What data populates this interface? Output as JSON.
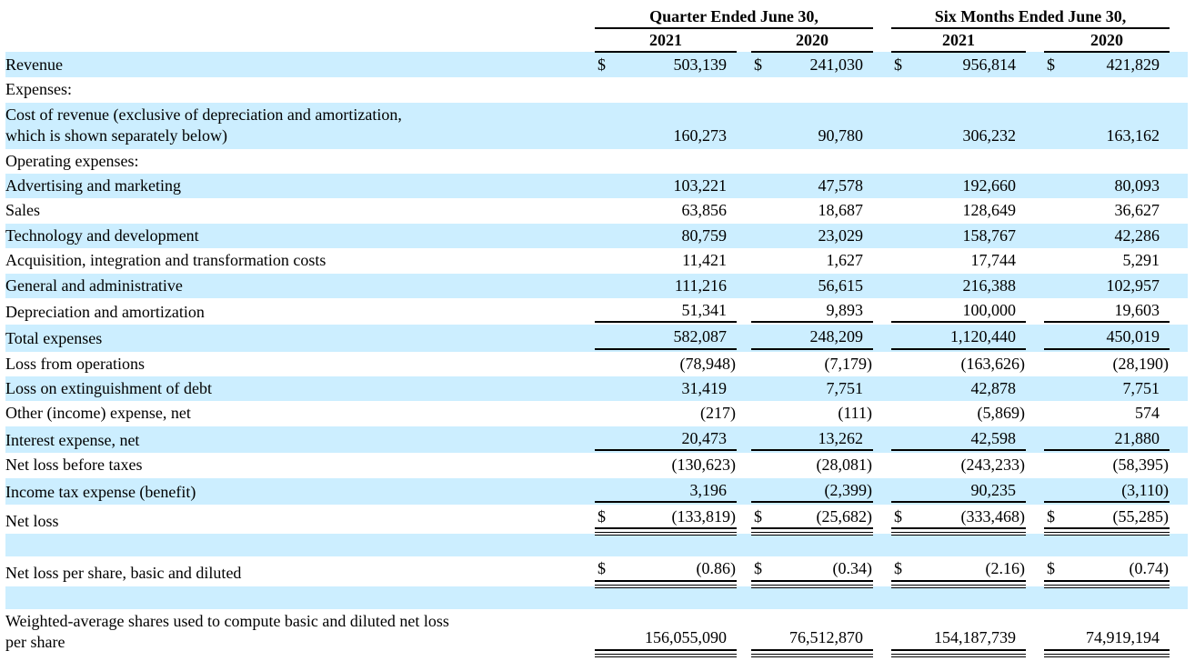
{
  "table": {
    "dollar_sign": "$",
    "shade_color": "#cceeff",
    "col_groups": [
      {
        "period": "Quarter Ended June 30,",
        "years": [
          "2021",
          "2020"
        ]
      },
      {
        "period": "Six Months Ended June 30,",
        "years": [
          "2021",
          "2020"
        ]
      }
    ],
    "rows": [
      {
        "label": "Revenue",
        "indent": 0,
        "shaded": true,
        "dollar": true,
        "rule": "none",
        "values": [
          "503,139",
          "241,030",
          "956,814",
          "421,829"
        ]
      },
      {
        "label": "Expenses:",
        "indent": 0,
        "shaded": false,
        "dollar": false,
        "rule": "none",
        "values": [
          "",
          "",
          "",
          ""
        ]
      },
      {
        "label": "Cost of revenue (exclusive of depreciation and amortization,\nwhich is shown separately below)",
        "indent": 1,
        "shaded": true,
        "dollar": false,
        "rule": "none",
        "values": [
          "160,273",
          "90,780",
          "306,232",
          "163,162"
        ]
      },
      {
        "label": "Operating expenses:",
        "indent": 1,
        "shaded": false,
        "dollar": false,
        "rule": "none",
        "values": [
          "",
          "",
          "",
          ""
        ]
      },
      {
        "label": "Advertising and marketing",
        "indent": 2,
        "shaded": true,
        "dollar": false,
        "rule": "none",
        "values": [
          "103,221",
          "47,578",
          "192,660",
          "80,093"
        ]
      },
      {
        "label": "Sales",
        "indent": 2,
        "shaded": false,
        "dollar": false,
        "rule": "none",
        "values": [
          "63,856",
          "18,687",
          "128,649",
          "36,627"
        ]
      },
      {
        "label": "Technology and development",
        "indent": 2,
        "shaded": true,
        "dollar": false,
        "rule": "none",
        "values": [
          "80,759",
          "23,029",
          "158,767",
          "42,286"
        ]
      },
      {
        "label": "Acquisition, integration and transformation costs",
        "indent": 2,
        "shaded": false,
        "dollar": false,
        "rule": "none",
        "values": [
          "11,421",
          "1,627",
          "17,744",
          "5,291"
        ]
      },
      {
        "label": "General and administrative",
        "indent": 2,
        "shaded": true,
        "dollar": false,
        "rule": "none",
        "values": [
          "111,216",
          "56,615",
          "216,388",
          "102,957"
        ]
      },
      {
        "label": "Depreciation and amortization",
        "indent": 2,
        "shaded": false,
        "dollar": false,
        "rule": "single",
        "values": [
          "51,341",
          "9,893",
          "100,000",
          "19,603"
        ]
      },
      {
        "label": "Total expenses",
        "indent": 3,
        "shaded": true,
        "dollar": false,
        "rule": "single",
        "values": [
          "582,087",
          "248,209",
          "1,120,440",
          "450,019"
        ]
      },
      {
        "label": "Loss from operations",
        "indent": 0,
        "shaded": false,
        "dollar": false,
        "rule": "none",
        "values": [
          "(78,948)",
          "(7,179)",
          "(163,626)",
          "(28,190)"
        ]
      },
      {
        "label": "Loss on extinguishment of debt",
        "indent": 0,
        "shaded": true,
        "dollar": false,
        "rule": "none",
        "values": [
          "31,419",
          "7,751",
          "42,878",
          "7,751"
        ]
      },
      {
        "label": "Other (income) expense, net",
        "indent": 0,
        "shaded": false,
        "dollar": false,
        "rule": "none",
        "values": [
          "(217)",
          "(111)",
          "(5,869)",
          "574"
        ]
      },
      {
        "label": "Interest expense, net",
        "indent": 0,
        "shaded": true,
        "dollar": false,
        "rule": "single",
        "values": [
          "20,473",
          "13,262",
          "42,598",
          "21,880"
        ]
      },
      {
        "label": "Net loss before taxes",
        "indent": 0,
        "shaded": false,
        "dollar": false,
        "rule": "none",
        "values": [
          "(130,623)",
          "(28,081)",
          "(243,233)",
          "(58,395)"
        ]
      },
      {
        "label": "Income tax expense (benefit)",
        "indent": 0,
        "shaded": true,
        "dollar": false,
        "rule": "single",
        "values": [
          "3,196",
          "(2,399)",
          "90,235",
          "(3,110)"
        ]
      },
      {
        "label": "Net loss",
        "indent": 0,
        "shaded": false,
        "dollar": true,
        "rule": "double",
        "values": [
          "(133,819)",
          "(25,682)",
          "(333,468)",
          "(55,285)"
        ]
      },
      {
        "label": "",
        "indent": 0,
        "shaded": true,
        "dollar": false,
        "rule": "none",
        "spacer": true,
        "values": [
          "",
          "",
          "",
          ""
        ]
      },
      {
        "label": "Net loss per share, basic and diluted",
        "indent": 0,
        "shaded": false,
        "dollar": true,
        "rule": "double",
        "values": [
          "(0.86)",
          "(0.34)",
          "(2.16)",
          "(0.74)"
        ]
      },
      {
        "label": "",
        "indent": 0,
        "shaded": true,
        "dollar": false,
        "rule": "none",
        "spacer": true,
        "values": [
          "",
          "",
          "",
          ""
        ]
      },
      {
        "label": "Weighted-average shares used to compute basic and diluted net loss\nper share",
        "indent": 0,
        "shaded": false,
        "dollar": false,
        "rule": "double",
        "values": [
          "156,055,090",
          "76,512,870",
          "154,187,739",
          "74,919,194"
        ]
      }
    ]
  }
}
